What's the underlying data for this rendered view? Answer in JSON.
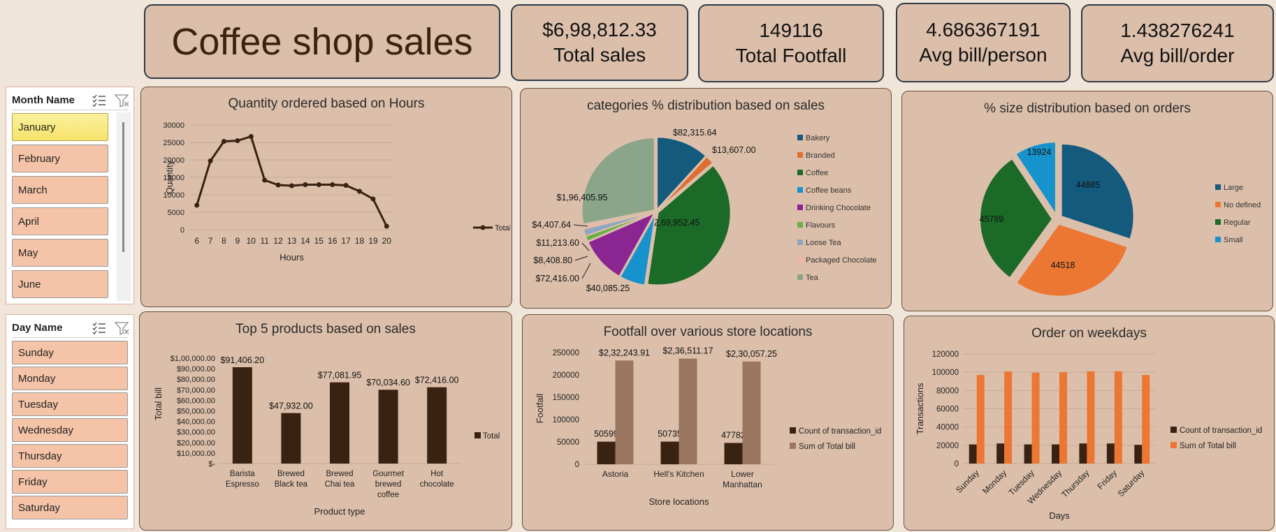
{
  "title": "Coffee shop sales",
  "kpis": [
    {
      "value": "$6,98,812.33",
      "label": "Total sales"
    },
    {
      "value": "149116",
      "label": "Total Footfall"
    },
    {
      "value": "4.686367191",
      "label": "Avg bill/person"
    },
    {
      "value": "1.438276241",
      "label": "Avg bill/order"
    }
  ],
  "month_slicer": {
    "title": "Month Name",
    "items": [
      "January",
      "February",
      "March",
      "April",
      "May",
      "June"
    ],
    "selected": "January"
  },
  "day_slicer": {
    "title": "Day Name",
    "items": [
      "Sunday",
      "Monday",
      "Tuesday",
      "Wednesday",
      "Thursday",
      "Friday",
      "Saturday"
    ]
  },
  "icons": [
    "multi-select-icon",
    "clear-filter-icon"
  ],
  "colors": {
    "dark_brown": "#3a2212",
    "light_brown": "#9b7660",
    "orange": "#ec7733",
    "panel_bg": "#dcbfaa",
    "slicer_selected": "#f6e36c",
    "slicer_item": "#f5c4a8"
  },
  "chart_data": [
    {
      "id": "hours",
      "type": "line",
      "title": "Quantity ordered based on Hours",
      "xlabel": "Hours",
      "ylabel": "Quantity",
      "x": [
        6,
        7,
        8,
        9,
        10,
        11,
        12,
        13,
        14,
        15,
        16,
        17,
        18,
        19,
        20
      ],
      "series": [
        {
          "name": "Total",
          "values": [
            7000,
            19700,
            25300,
            25500,
            26700,
            14200,
            12800,
            12600,
            12900,
            12900,
            12900,
            12700,
            11000,
            8800,
            1000
          ]
        }
      ],
      "yticks": [
        "0",
        "5000",
        "10000",
        "15000",
        "20000",
        "25000",
        "30000"
      ],
      "ylim": [
        0,
        30000
      ],
      "grid": true,
      "legend": "right"
    },
    {
      "id": "categories",
      "type": "pie",
      "title": "categories % distribution based on sales",
      "categories": [
        "Bakery",
        "Branded",
        "Coffee",
        "Coffee beans",
        "Drinking Chocolate",
        "Flavours",
        "Loose Tea",
        "Packaged Chocolate",
        "Tea"
      ],
      "values": [
        82315.64,
        13607.0,
        269952.45,
        40085.25,
        72416.0,
        8408.8,
        11213.6,
        4407.64,
        196405.95
      ],
      "labels": [
        "$82,315.64",
        "$13,607.00",
        "$2,69,952.45",
        "$40,085.25",
        "$72,416.00",
        "$8,408.80",
        "$11,213.60",
        "$4,407.64",
        "$1,96,405.95"
      ],
      "colors": [
        "#145a7d",
        "#e06d30",
        "#1c6a27",
        "#1692cc",
        "#8b2592",
        "#67b043",
        "#8ea6bf",
        "#f4b3a4",
        "#8aa589"
      ],
      "legend": "right"
    },
    {
      "id": "sizes",
      "type": "pie",
      "title": "% size distribution based on orders",
      "categories": [
        "Large",
        "No defined",
        "Regular",
        "Small"
      ],
      "values": [
        44885,
        44518,
        45789,
        13924
      ],
      "labels": [
        "44885",
        "44518",
        "45789",
        "13924"
      ],
      "colors": [
        "#145a7d",
        "#ec7733",
        "#1c6a27",
        "#1692cc"
      ],
      "legend": "right"
    },
    {
      "id": "products",
      "type": "bar",
      "title": "Top 5 products based on sales",
      "xlabel": "Product type",
      "ylabel": "Total bill",
      "categories": [
        "Barista Espresso",
        "Brewed Black tea",
        "Brewed Chai tea",
        "Gourmet brewed coffee",
        "Hot chocolate"
      ],
      "category_lines": [
        [
          "Barista",
          "Espresso"
        ],
        [
          "Brewed",
          "Black tea"
        ],
        [
          "Brewed",
          "Chai tea"
        ],
        [
          "Gourmet",
          "brewed",
          "coffee"
        ],
        [
          "Hot",
          "chocolate"
        ]
      ],
      "series": [
        {
          "name": "Total",
          "values": [
            91406.2,
            47932.0,
            77081.95,
            70034.6,
            72416.0
          ]
        }
      ],
      "labels": [
        "$91,406.20",
        "$47,932.00",
        "$77,081.95",
        "$70,034.60",
        "$72,416.00"
      ],
      "yticks": [
        "$-",
        "$10,000.00",
        "$20,000.00",
        "$30,000.00",
        "$40,000.00",
        "$50,000.00",
        "$60,000.00",
        "$70,000.00",
        "$80,000.00",
        "$90,000.00",
        "$1,00,000.00"
      ],
      "ylim": [
        0,
        100000
      ],
      "legend": "right"
    },
    {
      "id": "stores",
      "type": "bar",
      "title": "Footfall over various store locations",
      "xlabel": "Store locations",
      "ylabel": "Footfall",
      "categories": [
        "Astoria",
        "Hell's Kitchen",
        "Lower Manhattan"
      ],
      "category_lines": [
        [
          "Astoria"
        ],
        [
          "Hell's Kitchen"
        ],
        [
          "Lower",
          "Manhattan"
        ]
      ],
      "series": [
        {
          "name": "Count of transaction_id",
          "values": [
            50599,
            50735,
            47782
          ],
          "labels": [
            "50599",
            "50735",
            "47782"
          ]
        },
        {
          "name": "Sum of Total bill",
          "values": [
            232243.91,
            236511.17,
            230057.25
          ],
          "labels": [
            "$2,32,243.91",
            "$2,36,511.17",
            "$2,30,057.25"
          ]
        }
      ],
      "yticks": [
        "0",
        "50000",
        "100000",
        "150000",
        "200000",
        "250000"
      ],
      "ylim": [
        0,
        250000
      ],
      "legend": "right"
    },
    {
      "id": "weekdays",
      "type": "bar",
      "title": "Order on weekdays",
      "xlabel": "Days",
      "ylabel": "Transactions",
      "categories": [
        "Sunday",
        "Monday",
        "Tuesday",
        "Wednesday",
        "Thursday",
        "Friday",
        "Saturday"
      ],
      "series": [
        {
          "name": "Count of transaction_id",
          "values": [
            21000,
            22000,
            21000,
            21000,
            22000,
            22000,
            20500
          ]
        },
        {
          "name": "Sum of Total bill",
          "values": [
            97000,
            101000,
            99500,
            100000,
            101000,
            101000,
            97000
          ]
        }
      ],
      "yticks": [
        "0",
        "20000",
        "40000",
        "60000",
        "80000",
        "100000",
        "120000"
      ],
      "ylim": [
        0,
        120000
      ],
      "grid": true,
      "legend": "right"
    }
  ]
}
